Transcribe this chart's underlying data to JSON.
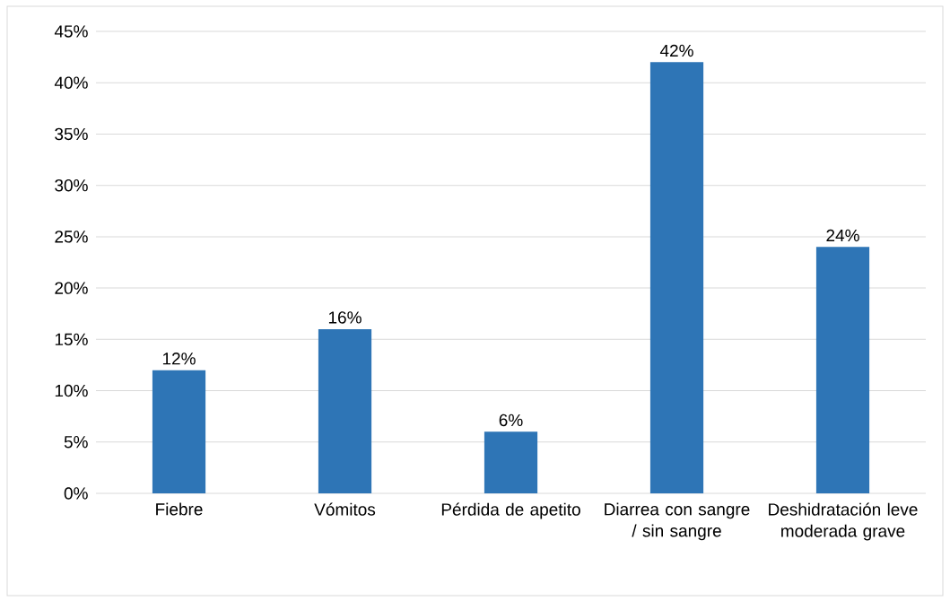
{
  "chart_data": {
    "type": "bar",
    "categories": [
      "Fiebre",
      "Vómitos",
      "Pérdida de apetito",
      "Diarrea con sangre / sin sangre",
      "Deshidratación leve moderada grave"
    ],
    "values": [
      12,
      16,
      6,
      42,
      24
    ],
    "value_labels": [
      "12%",
      "16%",
      "6%",
      "42%",
      "24%"
    ],
    "color": "#2e75b6",
    "ylim": [
      0,
      45
    ],
    "yticks": [
      {
        "value": 0,
        "label": "0%"
      },
      {
        "value": 5,
        "label": "5%"
      },
      {
        "value": 10,
        "label": "10%"
      },
      {
        "value": 15,
        "label": "15%"
      },
      {
        "value": 20,
        "label": "20%"
      },
      {
        "value": 25,
        "label": "25%"
      },
      {
        "value": 30,
        "label": "30%"
      },
      {
        "value": 35,
        "label": "35%"
      },
      {
        "value": 40,
        "label": "40%"
      },
      {
        "value": 45,
        "label": "45%"
      }
    ],
    "grid": "y"
  }
}
